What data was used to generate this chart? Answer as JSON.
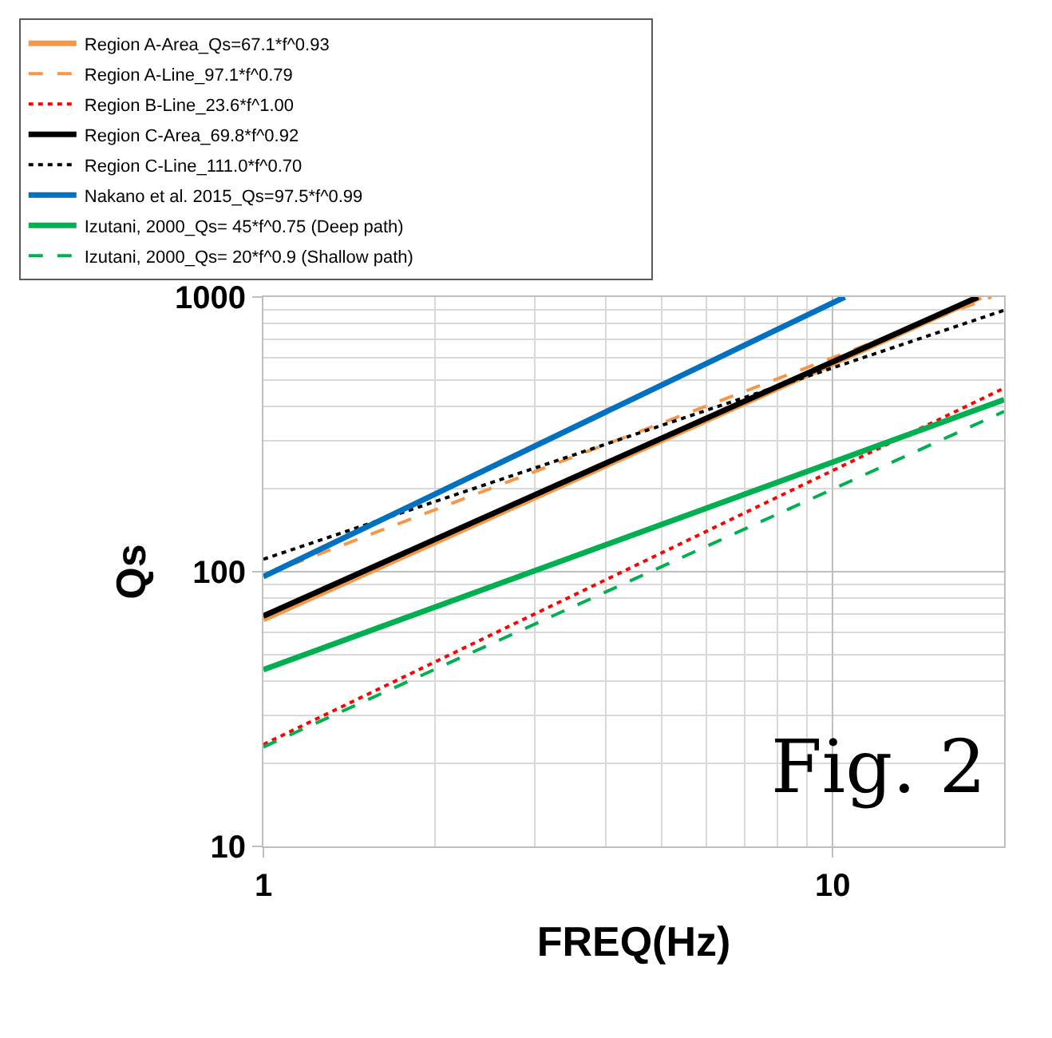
{
  "chart_data": {
    "type": "line",
    "xlabel": "FREQ(Hz)",
    "ylabel": "Qs",
    "log": "xy",
    "grid": true,
    "legend": "top",
    "marker": "none",
    "xlim": [
      1,
      20
    ],
    "ylim": [
      10,
      1000
    ],
    "xticks": [
      1,
      10
    ],
    "yticks": [
      10,
      100,
      1000
    ],
    "annotations": [
      "Fig. 2"
    ],
    "series": [
      {
        "name": "Region A-Area_Qs=67.1*f^0.93",
        "color": "#f79646",
        "line_style": "solid",
        "x": [
          1,
          18.2
        ],
        "values": [
          67,
          1000
        ]
      },
      {
        "name": "Region A-Line_97.1*f^0.79",
        "color": "#f79646",
        "line_style": "dashed",
        "x": [
          1,
          19
        ],
        "values": [
          97,
          1000
        ]
      },
      {
        "name": "Region B-Line_23.6*f^1.00",
        "color": "#ff0000",
        "line_style": "dotted",
        "x": [
          1,
          20
        ],
        "values": [
          23.5,
          466
        ]
      },
      {
        "name": "Region C-Area_69.8*f^0.92",
        "color": "#000000",
        "line_style": "solid",
        "x": [
          1,
          18
        ],
        "values": [
          69,
          1000
        ]
      },
      {
        "name": "Region C-Line_111.0*f^0.70",
        "color": "#000000",
        "line_style": "dotted",
        "x": [
          1,
          20
        ],
        "values": [
          111,
          895
        ]
      },
      {
        "name": "Nakano et al. 2015_Qs=97.5*f^0.99",
        "color": "#0070c0",
        "line_style": "solid",
        "x": [
          1,
          10.5
        ],
        "values": [
          96,
          1000
        ]
      },
      {
        "name": "Izutani, 2000_Qs= 45*f^0.75 (Deep path)",
        "color": "#00b050",
        "line_style": "solid",
        "x": [
          1,
          20
        ],
        "values": [
          44,
          423
        ]
      },
      {
        "name": "Izutani, 2000_Qs= 20*f^0.9 (Shallow path)",
        "color": "#00b050",
        "line_style": "dashed",
        "x": [
          1,
          20
        ],
        "values": [
          23,
          383
        ]
      }
    ]
  }
}
